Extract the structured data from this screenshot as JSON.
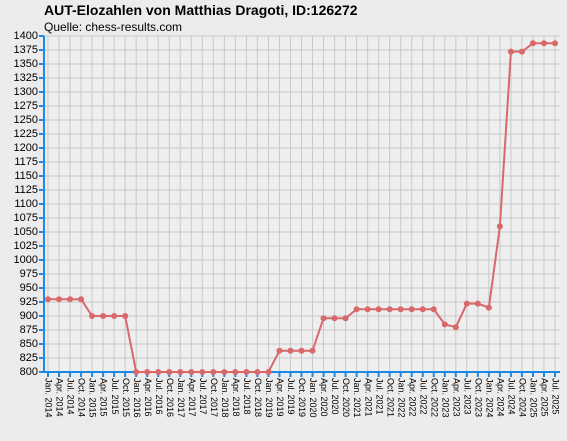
{
  "chart_data": {
    "type": "line",
    "title": "AUT-Elozahlen von Matthias Dragoti, ID:126272",
    "subtitle": "Quelle: chess-results.com",
    "categories": [
      "Jan. 2014",
      "Apr. 2014",
      "Jul. 2014",
      "Oct. 2014",
      "Jan. 2015",
      "Apr. 2015",
      "Jul. 2015",
      "Oct. 2015",
      "Jan. 2016",
      "Apr. 2016",
      "Jul. 2016",
      "Oct. 2016",
      "Jan. 2017",
      "Apr. 2017",
      "Jul. 2017",
      "Oct. 2017",
      "Jan. 2018",
      "Apr. 2018",
      "Jul. 2018",
      "Oct. 2018",
      "Jan. 2019",
      "Apr. 2019",
      "Jul. 2019",
      "Oct. 2019",
      "Jan. 2020",
      "Apr. 2020",
      "Jul. 2020",
      "Oct. 2020",
      "Jan. 2021",
      "Apr. 2021",
      "Jul. 2021",
      "Oct. 2021",
      "Jan. 2022",
      "Apr. 2022",
      "Jul. 2022",
      "Oct. 2022",
      "Jan. 2023",
      "Apr. 2023",
      "Jul. 2023",
      "Oct. 2023",
      "Jan. 2024",
      "Apr. 2024",
      "Jul. 2024",
      "Oct. 2024",
      "Jan. 2025",
      "Apr. 2025",
      "Jul. 2025"
    ],
    "values": [
      930,
      930,
      930,
      930,
      900,
      900,
      900,
      900,
      800,
      800,
      800,
      800,
      800,
      800,
      800,
      800,
      800,
      800,
      800,
      800,
      800,
      838,
      838,
      838,
      838,
      896,
      896,
      896,
      912,
      912,
      912,
      912,
      912,
      912,
      912,
      912,
      885,
      880,
      922,
      922,
      915,
      1060,
      1372,
      1372,
      1387,
      1387,
      1387
    ],
    "color": "#d9686a",
    "ylim": [
      800,
      1400
    ],
    "yticks": [
      800,
      825,
      850,
      875,
      900,
      925,
      950,
      975,
      1000,
      1025,
      1050,
      1075,
      1100,
      1125,
      1150,
      1175,
      1200,
      1225,
      1250,
      1275,
      1300,
      1325,
      1350,
      1375,
      1400
    ],
    "grid": true
  }
}
